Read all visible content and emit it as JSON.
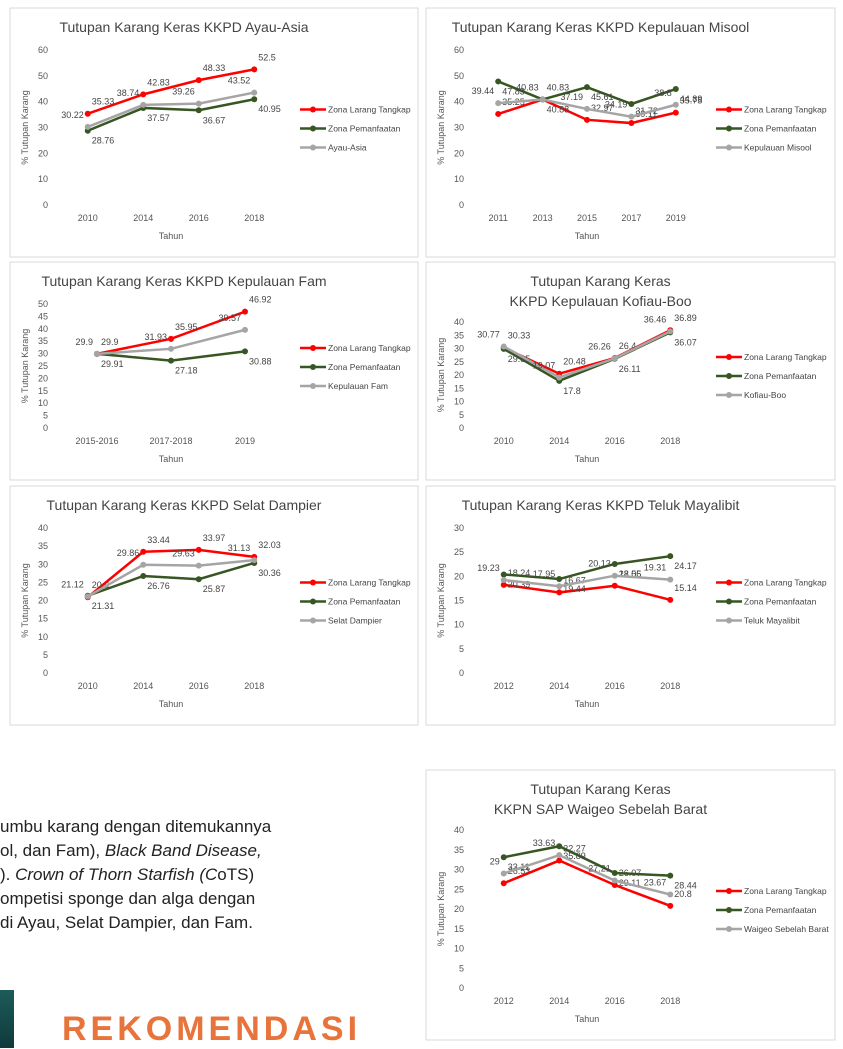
{
  "chart_data": [
    {
      "type": "line",
      "title": [
        "Tutupan Karang Keras KKPD Ayau-Asia"
      ],
      "xlabel": "Tahun",
      "ylabel": "% Tutupan Karang",
      "categories": [
        "2010",
        "2014",
        "2016",
        "2018"
      ],
      "ylim": [
        0,
        60
      ],
      "yticks": [
        0,
        10,
        20,
        30,
        40,
        50,
        60
      ],
      "series": [
        {
          "name": "Zona Larang Tangkap",
          "color": "#ff0000",
          "values": [
            35.33,
            42.83,
            48.33,
            52.5
          ]
        },
        {
          "name": "Zona Pemanfaatan",
          "color": "#375623",
          "values": [
            28.76,
            37.57,
            36.67,
            40.95
          ]
        },
        {
          "name": "Ayau-Asia",
          "color": "#a5a5a5",
          "values": [
            30.22,
            38.74,
            39.26,
            43.52
          ]
        }
      ]
    },
    {
      "type": "line",
      "title": [
        "Tutupan Karang Keras KKPD Kepulauan Misool"
      ],
      "xlabel": "Tahun",
      "ylabel": "% Tutupan Karang",
      "categories": [
        "2011",
        "2013",
        "2015",
        "2017",
        "2019"
      ],
      "ylim": [
        0,
        60
      ],
      "yticks": [
        0,
        10,
        20,
        30,
        40,
        50,
        60
      ],
      "series": [
        {
          "name": "Zona Larang Tangkap",
          "color": "#ff0000",
          "values": [
            35.25,
            40.83,
            32.97,
            31.72,
            35.75
          ]
        },
        {
          "name": "Zona Pemanfaatan",
          "color": "#375623",
          "values": [
            47.83,
            40.88,
            45.61,
            39.11,
            44.89
          ]
        },
        {
          "name": "Kepulauan Misool",
          "color": "#a5a5a5",
          "values": [
            39.44,
            40.83,
            37.19,
            34.19,
            38.8
          ]
        }
      ]
    },
    {
      "type": "line",
      "title": [
        "Tutupan Karang Keras KKPD Kepulauan Fam"
      ],
      "xlabel": "Tahun",
      "ylabel": "% Tutupan Karang",
      "categories": [
        "2015-2016",
        "2017-2018",
        "2019"
      ],
      "ylim": [
        0,
        50
      ],
      "yticks": [
        0,
        5,
        10,
        15,
        20,
        25,
        30,
        35,
        40,
        45,
        50
      ],
      "series": [
        {
          "name": "Zona Larang Tangkap",
          "color": "#ff0000",
          "values": [
            29.9,
            35.95,
            46.92
          ]
        },
        {
          "name": "Zona Pemanfaatan",
          "color": "#375623",
          "values": [
            29.91,
            27.18,
            30.88
          ]
        },
        {
          "name": "Kepulauan Fam",
          "color": "#a5a5a5",
          "values": [
            29.9,
            31.93,
            39.57
          ]
        }
      ]
    },
    {
      "type": "line",
      "title": [
        "Tutupan Karang Keras",
        "KKPD Kepulauan Kofiau-Boo"
      ],
      "xlabel": "Tahun",
      "ylabel": "% Tutupan Karang",
      "categories": [
        "2010",
        "2014",
        "2016",
        "2018"
      ],
      "ylim": [
        0,
        40
      ],
      "yticks": [
        0,
        5,
        10,
        15,
        20,
        25,
        30,
        35,
        40
      ],
      "series": [
        {
          "name": "Zona Larang Tangkap",
          "color": "#ff0000",
          "values": [
            30.33,
            20.48,
            26.4,
            36.89
          ]
        },
        {
          "name": "Zona Pemanfaatan",
          "color": "#375623",
          "values": [
            29.85,
            17.8,
            26.11,
            36.07
          ]
        },
        {
          "name": "Kofiau-Boo",
          "color": "#a5a5a5",
          "values": [
            30.77,
            19.07,
            26.26,
            36.46
          ]
        }
      ]
    },
    {
      "type": "line",
      "title": [
        "Tutupan Karang Keras KKPD Selat Dampier"
      ],
      "xlabel": "Tahun",
      "ylabel": "% Tutupan Karang",
      "categories": [
        "2010",
        "2014",
        "2016",
        "2018"
      ],
      "ylim": [
        0,
        40
      ],
      "yticks": [
        0,
        5,
        10,
        15,
        20,
        25,
        30,
        35,
        40
      ],
      "series": [
        {
          "name": "Zona Larang Tangkap",
          "color": "#ff0000",
          "values": [
            20.9,
            33.44,
            33.97,
            32.03
          ]
        },
        {
          "name": "Zona Pemanfaatan",
          "color": "#375623",
          "values": [
            21.31,
            26.76,
            25.87,
            30.36
          ]
        },
        {
          "name": "Selat Dampier",
          "color": "#a5a5a5",
          "values": [
            21.12,
            29.86,
            29.63,
            31.13
          ]
        }
      ]
    },
    {
      "type": "line",
      "title": [
        "Tutupan Karang Keras KKPD Teluk Mayalibit"
      ],
      "xlabel": "Tahun",
      "ylabel": "% Tutupan Karang",
      "categories": [
        "2012",
        "2014",
        "2016",
        "2018"
      ],
      "ylim": [
        0,
        30
      ],
      "yticks": [
        0,
        5,
        10,
        15,
        20,
        25,
        30
      ],
      "series": [
        {
          "name": "Zona Larang Tangkap",
          "color": "#ff0000",
          "values": [
            18.24,
            16.67,
            18.05,
            15.14
          ]
        },
        {
          "name": "Zona Pemanfaatan",
          "color": "#375623",
          "values": [
            20.39,
            19.44,
            22.56,
            24.17
          ]
        },
        {
          "name": "Teluk Mayalibit",
          "color": "#a5a5a5",
          "values": [
            19.23,
            17.95,
            20.13,
            19.31
          ]
        }
      ]
    },
    {
      "type": "line",
      "title": [
        "Tutupan Karang Keras",
        "KKPN SAP Waigeo Sebelah Barat"
      ],
      "xlabel": "Tahun",
      "ylabel": "% Tutupan Karang",
      "categories": [
        "2012",
        "2014",
        "2016",
        "2018"
      ],
      "ylim": [
        0,
        40
      ],
      "yticks": [
        0,
        5,
        10,
        15,
        20,
        25,
        30,
        35,
        40
      ],
      "series": [
        {
          "name": "Zona Larang Tangkap",
          "color": "#ff0000",
          "values": [
            26.53,
            32.27,
            26.07,
            20.8
          ]
        },
        {
          "name": "Zona Pemanfaatan",
          "color": "#375623",
          "values": [
            33.11,
            35.89,
            29.11,
            28.44
          ]
        },
        {
          "name": "Waigeo Sebelah Barat",
          "color": "#a5a5a5",
          "values": [
            29,
            33.63,
            27.21,
            23.67
          ]
        }
      ]
    }
  ],
  "text_lines": [
    [
      "umbu karang dengan ditemukannya"
    ],
    [
      "ol, dan Fam), ",
      "Black Band Disease,"
    ],
    [
      "). ",
      "Crown of Thorn Starfish (C",
      "oTS)"
    ],
    [
      "ompetisi sponge dan alga dengan"
    ],
    [
      "di Ayau, Selat Dampier, dan Fam."
    ]
  ],
  "heading": "REKOMENDASI"
}
